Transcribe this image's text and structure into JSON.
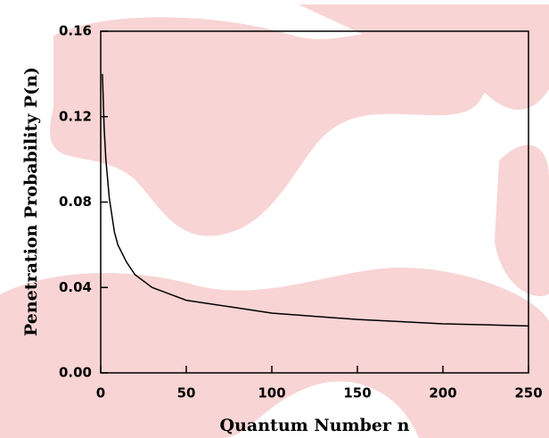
{
  "chart_data": {
    "type": "line",
    "xlabel": "Quantum Number n",
    "ylabel": "Penetration Probability P(n)",
    "x": [
      1,
      2,
      3,
      5,
      8,
      10,
      15,
      20,
      30,
      40,
      50,
      75,
      100,
      125,
      150,
      175,
      200,
      225,
      250
    ],
    "values": [
      0.14,
      0.115,
      0.1,
      0.082,
      0.066,
      0.06,
      0.052,
      0.046,
      0.04,
      0.037,
      0.034,
      0.031,
      0.028,
      0.0265,
      0.025,
      0.024,
      0.023,
      0.0225,
      0.022
    ],
    "color": "#000000",
    "xlim": [
      0,
      250
    ],
    "xticks": [
      0,
      50,
      100,
      150,
      200,
      250
    ],
    "ylim": [
      0,
      0.16
    ],
    "yticks": [
      {
        "value": 0,
        "label": "0.00"
      },
      0.04,
      0.08,
      0.12,
      0.16
    ]
  }
}
